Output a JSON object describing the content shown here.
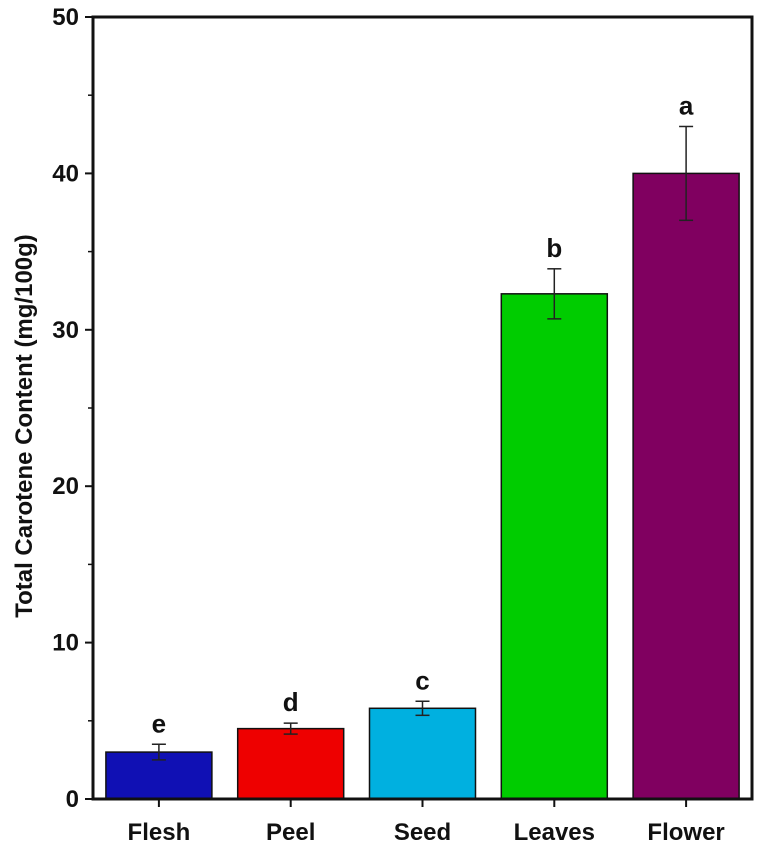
{
  "chart_data": {
    "type": "bar",
    "title": "",
    "xlabel": "",
    "ylabel": "Total Carotene Content (mg/100g)",
    "ylim": [
      0,
      50
    ],
    "yticks": [
      0,
      10,
      20,
      30,
      40,
      50
    ],
    "grid": false,
    "legend": "none",
    "categories": [
      "Flesh",
      "Peel",
      "Seed",
      "Leaves",
      "Flower"
    ],
    "values": [
      3.0,
      4.5,
      5.8,
      32.3,
      40.0
    ],
    "errors": [
      0.5,
      0.35,
      0.45,
      1.6,
      3.0
    ],
    "significance_labels": [
      "e",
      "d",
      "c",
      "b",
      "a"
    ],
    "colors": [
      "#1010b4",
      "#ee0000",
      "#00b0e0",
      "#00cc00",
      "#800060"
    ]
  }
}
